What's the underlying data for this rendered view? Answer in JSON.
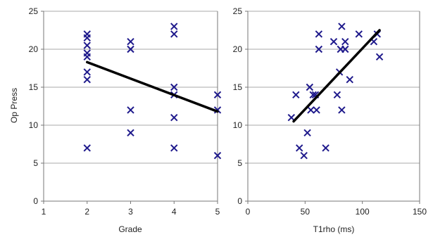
{
  "colors": {
    "marker": "#1f1a8c",
    "trend": "#000000",
    "grid": "#a8a8a8",
    "axis": "#777777",
    "text": "#222222"
  },
  "chart_data": [
    {
      "type": "scatter",
      "ylabel": "Op Press",
      "xlabel": "Grade",
      "xlim": [
        1,
        5
      ],
      "ylim": [
        0,
        25
      ],
      "xticks": [
        1,
        2,
        3,
        4,
        5
      ],
      "yticks": [
        0,
        5,
        10,
        15,
        20,
        25
      ],
      "grid": "horizontal",
      "marker": "x",
      "points": [
        {
          "x": 2,
          "y": 22
        },
        {
          "x": 2,
          "y": 21.5
        },
        {
          "x": 2,
          "y": 20.5
        },
        {
          "x": 2,
          "y": 19.5
        },
        {
          "x": 2,
          "y": 19
        },
        {
          "x": 2,
          "y": 17
        },
        {
          "x": 2,
          "y": 16
        },
        {
          "x": 2,
          "y": 7
        },
        {
          "x": 3,
          "y": 21
        },
        {
          "x": 3,
          "y": 20
        },
        {
          "x": 3,
          "y": 12
        },
        {
          "x": 3,
          "y": 9
        },
        {
          "x": 4,
          "y": 23
        },
        {
          "x": 4,
          "y": 22
        },
        {
          "x": 4,
          "y": 15
        },
        {
          "x": 4,
          "y": 14
        },
        {
          "x": 4,
          "y": 11
        },
        {
          "x": 4,
          "y": 7
        },
        {
          "x": 5,
          "y": 14
        },
        {
          "x": 5,
          "y": 12
        },
        {
          "x": 5,
          "y": 6
        }
      ],
      "trendline": [
        {
          "x": 2,
          "y": 18.3
        },
        {
          "x": 5,
          "y": 11.8
        }
      ]
    },
    {
      "type": "scatter",
      "ylabel": "",
      "xlabel": "T1rho (ms)",
      "xlim": [
        0,
        150
      ],
      "ylim": [
        0,
        25
      ],
      "xticks": [
        0,
        50,
        100,
        150
      ],
      "yticks": [
        0,
        5,
        10,
        15,
        20,
        25
      ],
      "grid": "horizontal",
      "marker": "x",
      "points": [
        {
          "x": 38,
          "y": 11
        },
        {
          "x": 42,
          "y": 14
        },
        {
          "x": 45,
          "y": 7
        },
        {
          "x": 49,
          "y": 6
        },
        {
          "x": 52,
          "y": 9
        },
        {
          "x": 54,
          "y": 15
        },
        {
          "x": 55,
          "y": 12
        },
        {
          "x": 57,
          "y": 14
        },
        {
          "x": 59,
          "y": 14
        },
        {
          "x": 60,
          "y": 12
        },
        {
          "x": 62,
          "y": 22
        },
        {
          "x": 62,
          "y": 20
        },
        {
          "x": 68,
          "y": 7
        },
        {
          "x": 75,
          "y": 21
        },
        {
          "x": 78,
          "y": 14
        },
        {
          "x": 80,
          "y": 17
        },
        {
          "x": 81,
          "y": 20
        },
        {
          "x": 82,
          "y": 23
        },
        {
          "x": 82,
          "y": 12
        },
        {
          "x": 85,
          "y": 21
        },
        {
          "x": 85,
          "y": 20
        },
        {
          "x": 89,
          "y": 16
        },
        {
          "x": 97,
          "y": 22
        },
        {
          "x": 110,
          "y": 21
        },
        {
          "x": 113,
          "y": 22
        },
        {
          "x": 115,
          "y": 19
        }
      ],
      "trendline": [
        {
          "x": 40,
          "y": 10.5
        },
        {
          "x": 115,
          "y": 22.5
        }
      ]
    }
  ]
}
